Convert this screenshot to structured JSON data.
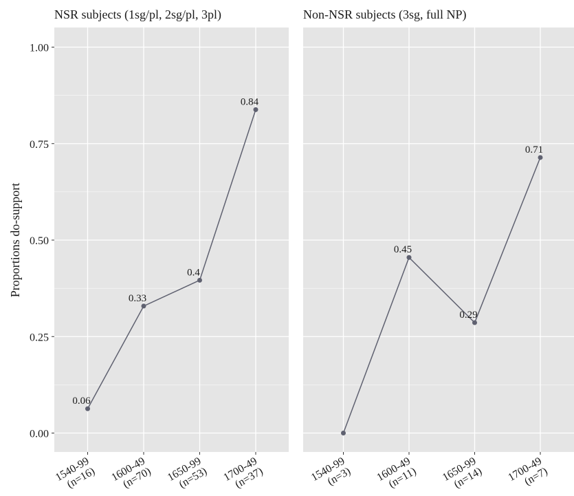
{
  "colors": {
    "panel": "#e5e5e5",
    "grid": "#ffffff",
    "series": "#5f6170",
    "text": "#1a1a1a"
  },
  "y_axis": {
    "label": "Proportions do-support",
    "ticks": [
      "0.00",
      "0.25",
      "0.50",
      "0.75",
      "1.00"
    ]
  },
  "chart_data": [
    {
      "type": "line",
      "title": "NSR subjects (1sg/pl, 2sg/pl, 3pl)",
      "xlabel": "",
      "ylabel": "Proportions do-support",
      "ylim": [
        0,
        1
      ],
      "grid": true,
      "categories": [
        "1540-99",
        "1600-49",
        "1650-99",
        "1700-49"
      ],
      "category_counts": [
        "(n=16)",
        "(n=70)",
        "(n=53)",
        "(n=37)"
      ],
      "values": [
        0.063,
        0.329,
        0.396,
        0.838
      ],
      "data_labels": [
        "0.06",
        "0.33",
        "0.4",
        "0.84"
      ]
    },
    {
      "type": "line",
      "title": "Non-NSR subjects (3sg, full NP)",
      "xlabel": "",
      "ylabel": "",
      "ylim": [
        0,
        1
      ],
      "grid": true,
      "categories": [
        "1540-99",
        "1600-49",
        "1650-99",
        "1700-49"
      ],
      "category_counts": [
        "(n=3)",
        "(n=11)",
        "(n=14)",
        "(n=7)"
      ],
      "values": [
        0.0,
        0.455,
        0.286,
        0.714
      ],
      "data_labels": [
        "",
        "0.45",
        "0.29",
        "0.71"
      ]
    }
  ]
}
